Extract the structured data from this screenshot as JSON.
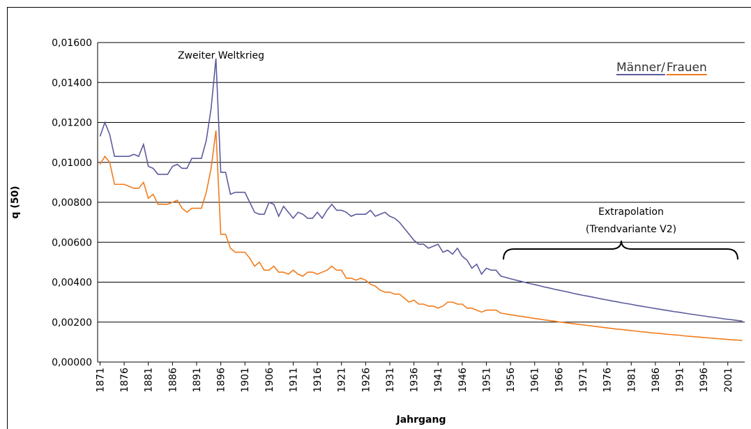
{
  "chart_data": {
    "type": "line",
    "xlabel": "Jahrgang",
    "ylabel": "q (50)",
    "annotations": [
      "Zweiter Weltkrieg",
      "Extrapolation",
      "(Trendvariante V2)"
    ],
    "x": [
      1871,
      1872,
      1873,
      1874,
      1875,
      1876,
      1877,
      1878,
      1879,
      1880,
      1881,
      1882,
      1883,
      1884,
      1885,
      1886,
      1887,
      1888,
      1889,
      1890,
      1891,
      1892,
      1893,
      1894,
      1895,
      1896,
      1897,
      1898,
      1899,
      1900,
      1901,
      1902,
      1903,
      1904,
      1905,
      1906,
      1907,
      1908,
      1909,
      1910,
      1911,
      1912,
      1913,
      1914,
      1915,
      1916,
      1917,
      1918,
      1919,
      1920,
      1921,
      1922,
      1923,
      1924,
      1925,
      1926,
      1927,
      1928,
      1929,
      1930,
      1931,
      1932,
      1933,
      1934,
      1935,
      1936,
      1937,
      1938,
      1939,
      1940,
      1941,
      1942,
      1943,
      1944,
      1945,
      1946,
      1947,
      1948,
      1949,
      1950,
      1951,
      1952,
      1953,
      1954,
      1955,
      1956,
      1957,
      1958,
      1959,
      1960,
      1961,
      1962,
      1963,
      1964,
      1965,
      1966,
      1967,
      1968,
      1969,
      1970,
      1971,
      1972,
      1973,
      1974,
      1975,
      1976,
      1977,
      1978,
      1979,
      1980,
      1981,
      1982,
      1983,
      1984,
      1985,
      1986,
      1987,
      1988,
      1989,
      1990,
      1991,
      1992,
      1993,
      1994,
      1995,
      1996,
      1997,
      1998,
      1999,
      2000,
      2001,
      2002,
      2003,
      2004
    ],
    "xlim": [
      1870.5,
      2004.5
    ],
    "xticks": [
      1871,
      1876,
      1881,
      1886,
      1891,
      1896,
      1901,
      1906,
      1911,
      1916,
      1921,
      1926,
      1931,
      1936,
      1941,
      1946,
      1951,
      1956,
      1961,
      1966,
      1971,
      1976,
      1981,
      1986,
      1991,
      1996,
      2001
    ],
    "ylim": [
      0,
      0.016
    ],
    "yticks": [
      {
        "value": 0,
        "label": "0,00000"
      },
      {
        "value": 0.002,
        "label": "0,00200"
      },
      {
        "value": 0.004,
        "label": "0,00400"
      },
      {
        "value": 0.006,
        "label": "0,00600"
      },
      {
        "value": 0.008,
        "label": "0,00800"
      },
      {
        "value": 0.01,
        "label": "0,01000"
      },
      {
        "value": 0.012,
        "label": "0,01200"
      },
      {
        "value": 0.014,
        "label": "0,01400"
      },
      {
        "value": 0.016,
        "label": "0,01600"
      }
    ],
    "grid": true,
    "legend": "upper right",
    "series": [
      {
        "name": "Männer/",
        "color": "#5b5a9c",
        "values": [
          0.0113,
          0.012,
          0.0114,
          0.0103,
          0.0103,
          0.0103,
          0.0103,
          0.0104,
          0.0103,
          0.0109,
          0.0098,
          0.0097,
          0.0094,
          0.0094,
          0.0094,
          0.0098,
          0.0099,
          0.0097,
          0.0097,
          0.0102,
          0.0102,
          0.0102,
          0.0111,
          0.0127,
          0.0152,
          0.0095,
          0.0095,
          0.0084,
          0.0085,
          0.0085,
          0.0085,
          0.008,
          0.0075,
          0.0074,
          0.0074,
          0.008,
          0.0079,
          0.0073,
          0.0078,
          0.0075,
          0.0072,
          0.0075,
          0.0074,
          0.0072,
          0.0072,
          0.0075,
          0.0072,
          0.0076,
          0.0079,
          0.0076,
          0.0076,
          0.0075,
          0.0073,
          0.0074,
          0.0074,
          0.0074,
          0.0076,
          0.0073,
          0.0074,
          0.0075,
          0.0073,
          0.0072,
          0.007,
          0.0067,
          0.0064,
          0.0061,
          0.0059,
          0.0059,
          0.0057,
          0.0058,
          0.0059,
          0.0055,
          0.0056,
          0.0054,
          0.0057,
          0.0053,
          0.0051,
          0.0047,
          0.0049,
          0.0044,
          0.0047,
          0.0046,
          0.0046,
          0.0043,
          0.00424,
          0.00417,
          0.00411,
          0.00405,
          0.00399,
          0.00393,
          0.00388,
          0.00382,
          0.00376,
          0.00371,
          0.00365,
          0.0036,
          0.00355,
          0.0035,
          0.00344,
          0.00339,
          0.00334,
          0.0033,
          0.00325,
          0.0032,
          0.00315,
          0.00311,
          0.00306,
          0.00302,
          0.00297,
          0.00293,
          0.00289,
          0.00284,
          0.0028,
          0.00276,
          0.00272,
          0.00268,
          0.00264,
          0.0026,
          0.00256,
          0.00252,
          0.00249,
          0.00245,
          0.00241,
          0.00238,
          0.00234,
          0.00231,
          0.00227,
          0.00224,
          0.00221,
          0.00217,
          0.00214,
          0.00211,
          0.00208,
          0.00205
        ]
      },
      {
        "name": "Frauen",
        "color": "#f07b1c",
        "values": [
          0.0099,
          0.0103,
          0.01,
          0.0089,
          0.0089,
          0.0089,
          0.0088,
          0.0087,
          0.0087,
          0.009,
          0.0082,
          0.0084,
          0.0079,
          0.0079,
          0.0079,
          0.008,
          0.0081,
          0.0077,
          0.0075,
          0.0077,
          0.0077,
          0.0077,
          0.0085,
          0.0097,
          0.0116,
          0.0064,
          0.0064,
          0.0057,
          0.0055,
          0.0055,
          0.0055,
          0.0052,
          0.0048,
          0.005,
          0.0046,
          0.0046,
          0.0048,
          0.0045,
          0.0045,
          0.0044,
          0.0046,
          0.0044,
          0.0043,
          0.0045,
          0.0045,
          0.0044,
          0.0045,
          0.0046,
          0.0048,
          0.0046,
          0.0046,
          0.0042,
          0.0042,
          0.0041,
          0.0042,
          0.0041,
          0.0039,
          0.0038,
          0.0036,
          0.0035,
          0.0035,
          0.0034,
          0.0034,
          0.0032,
          0.003,
          0.0031,
          0.0029,
          0.0029,
          0.0028,
          0.0028,
          0.0027,
          0.0028,
          0.003,
          0.003,
          0.0029,
          0.0029,
          0.0027,
          0.0027,
          0.0026,
          0.0025,
          0.0026,
          0.0026,
          0.0026,
          0.00245,
          0.00241,
          0.00237,
          0.00233,
          0.00229,
          0.00226,
          0.00222,
          0.00218,
          0.00215,
          0.00211,
          0.00208,
          0.00205,
          0.00201,
          0.00198,
          0.00195,
          0.00192,
          0.00189,
          0.00186,
          0.00183,
          0.0018,
          0.00177,
          0.00174,
          0.00171,
          0.00168,
          0.00165,
          0.00163,
          0.0016,
          0.00157,
          0.00155,
          0.00152,
          0.0015,
          0.00147,
          0.00145,
          0.00143,
          0.0014,
          0.00138,
          0.00136,
          0.00134,
          0.00131,
          0.00129,
          0.00127,
          0.00125,
          0.00123,
          0.00121,
          0.00119,
          0.00117,
          0.00115,
          0.00113,
          0.00111,
          0.0011,
          0.00108
        ]
      }
    ]
  }
}
